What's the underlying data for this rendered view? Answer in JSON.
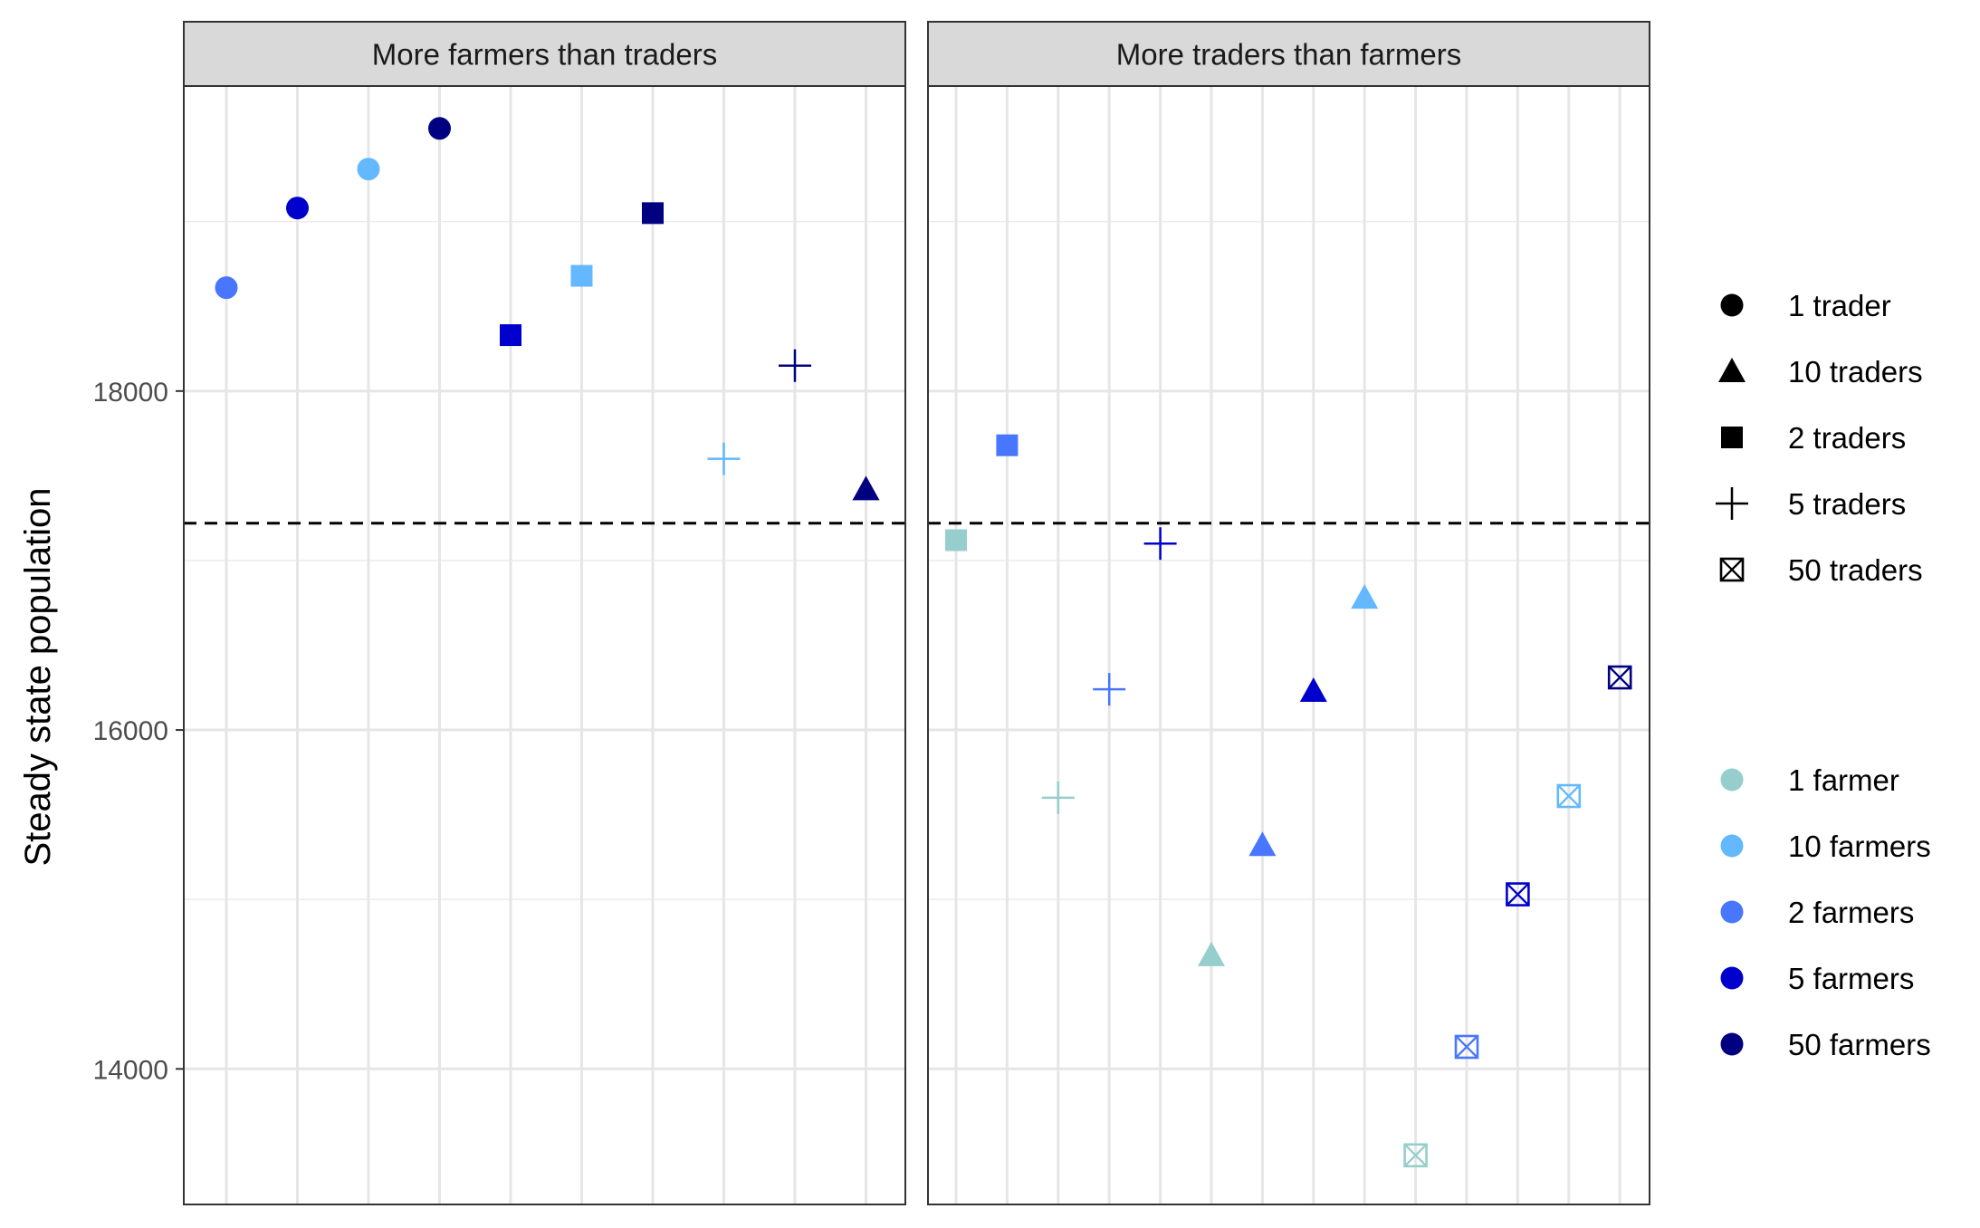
{
  "chart_data": {
    "type": "scatter",
    "title": "",
    "ylabel": "Steady state population",
    "xlabel": "",
    "ylim": [
      13200,
      19800
    ],
    "yticks": [
      14000,
      16000,
      18000
    ],
    "ytick_labels": [
      "14000",
      "16000",
      "18000"
    ],
    "grid": true,
    "reference_line": {
      "y": 17220,
      "style": "dashed",
      "color": "#000000"
    },
    "legend_position": "right",
    "legend_traders": {
      "items": [
        {
          "label": "1 trader",
          "shape": "circle"
        },
        {
          "label": "10 traders",
          "shape": "triangle"
        },
        {
          "label": "2 traders",
          "shape": "square"
        },
        {
          "label": "5 traders",
          "shape": "plus"
        },
        {
          "label": "50 traders",
          "shape": "boxx"
        }
      ]
    },
    "legend_farmers": {
      "items": [
        {
          "label": "1 farmer",
          "color": "#96cdcd"
        },
        {
          "label": "10 farmers",
          "color": "#63b8ff"
        },
        {
          "label": "2 farmers",
          "color": "#4876ff"
        },
        {
          "label": "5 farmers",
          "color": "#0000cd"
        },
        {
          "label": "50 farmers",
          "color": "#000080"
        }
      ]
    },
    "panels": [
      {
        "title": "More farmers than traders",
        "n_slots": 10,
        "points": [
          {
            "slot": 0,
            "y": 18610,
            "traders": "1 trader",
            "farmers": "2 farmers"
          },
          {
            "slot": 1,
            "y": 19080,
            "traders": "1 trader",
            "farmers": "5 farmers"
          },
          {
            "slot": 2,
            "y": 19310,
            "traders": "1 trader",
            "farmers": "10 farmers"
          },
          {
            "slot": 3,
            "y": 19550,
            "traders": "1 trader",
            "farmers": "50 farmers"
          },
          {
            "slot": 4,
            "y": 18330,
            "traders": "2 traders",
            "farmers": "5 farmers"
          },
          {
            "slot": 5,
            "y": 18680,
            "traders": "2 traders",
            "farmers": "10 farmers"
          },
          {
            "slot": 6,
            "y": 19050,
            "traders": "2 traders",
            "farmers": "50 farmers"
          },
          {
            "slot": 7,
            "y": 17600,
            "traders": "5 traders",
            "farmers": "10 farmers"
          },
          {
            "slot": 8,
            "y": 18150,
            "traders": "5 traders",
            "farmers": "50 farmers"
          },
          {
            "slot": 9,
            "y": 17420,
            "traders": "10 traders",
            "farmers": "50 farmers"
          }
        ]
      },
      {
        "title": "More traders than farmers",
        "n_slots": 14,
        "points": [
          {
            "slot": 0,
            "y": 17120,
            "traders": "2 traders",
            "farmers": "1 farmer"
          },
          {
            "slot": 1,
            "y": 17680,
            "traders": "2 traders",
            "farmers": "2 farmers"
          },
          {
            "slot": 2,
            "y": 15600,
            "traders": "5 traders",
            "farmers": "1 farmer"
          },
          {
            "slot": 3,
            "y": 16240,
            "traders": "5 traders",
            "farmers": "2 farmers"
          },
          {
            "slot": 4,
            "y": 17100,
            "traders": "5 traders",
            "farmers": "5 farmers"
          },
          {
            "slot": 5,
            "y": 14670,
            "traders": "10 traders",
            "farmers": "1 farmer"
          },
          {
            "slot": 6,
            "y": 15320,
            "traders": "10 traders",
            "farmers": "2 farmers"
          },
          {
            "slot": 7,
            "y": 16230,
            "traders": "10 traders",
            "farmers": "5 farmers"
          },
          {
            "slot": 8,
            "y": 16780,
            "traders": "10 traders",
            "farmers": "10 farmers"
          },
          {
            "slot": 9,
            "y": 13490,
            "traders": "50 traders",
            "farmers": "1 farmer"
          },
          {
            "slot": 10,
            "y": 14130,
            "traders": "50 traders",
            "farmers": "2 farmers"
          },
          {
            "slot": 11,
            "y": 15030,
            "traders": "50 traders",
            "farmers": "5 farmers"
          },
          {
            "slot": 12,
            "y": 15610,
            "traders": "50 traders",
            "farmers": "10 farmers"
          },
          {
            "slot": 13,
            "y": 16310,
            "traders": "50 traders",
            "farmers": "50 farmers"
          }
        ]
      }
    ]
  }
}
